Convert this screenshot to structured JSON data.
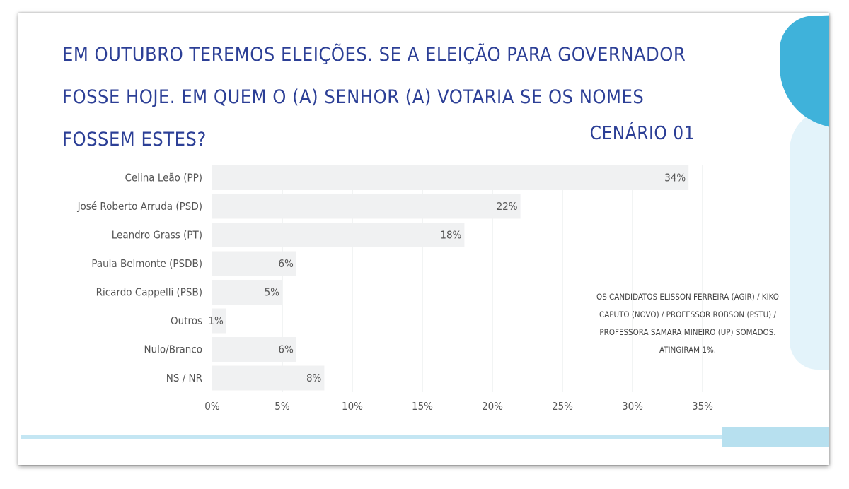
{
  "header": {
    "title": "EM OUTUBRO TEREMOS ELEIÇÕES. SE A ELEIÇÃO PARA GOVERNADOR FOSSE HOJE. EM QUEM O (A) SENHOR (A) VOTARIA SE OS NOMES FOSSEM ESTES?",
    "scenario": "CENÁRIO 01"
  },
  "note": "OS CANDIDATOS ELISSON FERREIRA (AGIR) / KIKO CAPUTO (NOVO) / PROFESSOR ROBSON (PSTU) / PROFESSORA SAMARA MINEIRO (UP) SOMADOS. ATINGIRAM 1%.",
  "colors": {
    "title": "#2c3f96",
    "bar": "#f0f1f2",
    "grid": "#e6e8ea",
    "accent_dark": "#3fb2da",
    "accent_light": "#e3f3fa"
  },
  "chart_data": {
    "type": "bar",
    "orientation": "horizontal",
    "categories": [
      "Celina Leão (PP)",
      "José Roberto Arruda (PSD)",
      "Leandro Grass (PT)",
      "Paula Belmonte (PSDB)",
      "Ricardo Cappelli (PSB)",
      "Outros",
      "Nulo/Branco",
      "NS / NR"
    ],
    "values": [
      34,
      22,
      18,
      6,
      5,
      1,
      6,
      8
    ],
    "value_labels": [
      "34%",
      "22%",
      "18%",
      "6%",
      "5%",
      "1%",
      "6%",
      "8%"
    ],
    "xlim": [
      0,
      35
    ],
    "xticks": [
      0,
      5,
      10,
      15,
      20,
      25,
      30,
      35
    ],
    "xtick_labels": [
      "0%",
      "5%",
      "10%",
      "15%",
      "20%",
      "25%",
      "30%",
      "35%"
    ],
    "grid": true,
    "legend": "none"
  }
}
